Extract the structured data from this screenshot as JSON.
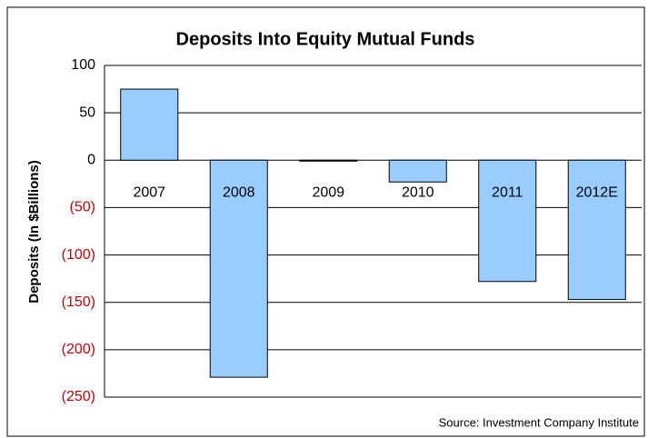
{
  "chart_data": {
    "type": "bar",
    "title": "Deposits Into Equity Mutual Funds",
    "y_label": "Deposits (In $Billions)",
    "source": "Source: Investment Company Institute",
    "categories": [
      "2007",
      "2008",
      "2009",
      "2010",
      "2011",
      "2012E"
    ],
    "values": [
      75,
      -229,
      -1,
      -23,
      -128,
      -147
    ],
    "color": "#99ccff",
    "ylim": [
      -250,
      100
    ],
    "yticks": [
      100,
      50,
      0,
      {
        "value": -50,
        "label": "(50)"
      },
      {
        "value": -100,
        "label": "(100)"
      },
      {
        "value": -150,
        "label": "(150)"
      },
      {
        "value": -200,
        "label": "(200)"
      },
      {
        "value": -250,
        "label": "(250)"
      }
    ],
    "negative_tick_color": "#cc0000",
    "grid": true
  }
}
